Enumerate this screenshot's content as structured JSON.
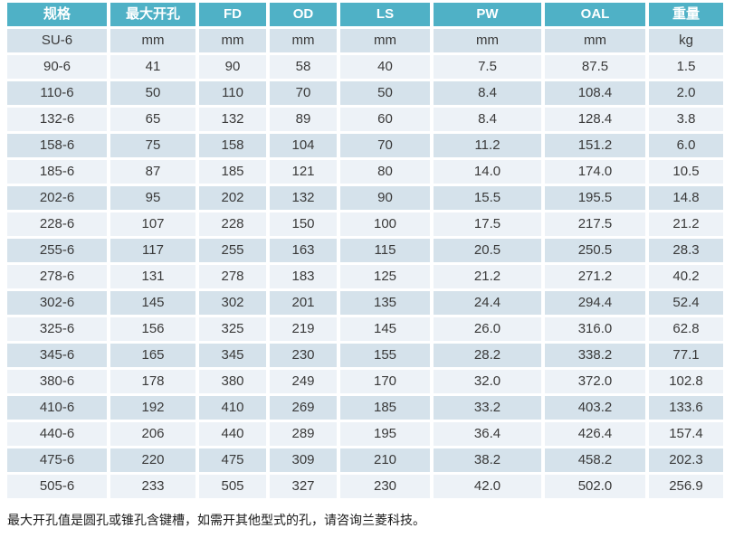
{
  "table": {
    "headers": [
      "规格",
      "最大开孔",
      "FD",
      "OD",
      "LS",
      "PW",
      "OAL",
      "重量"
    ],
    "units_row": [
      "SU-6",
      "mm",
      "mm",
      "mm",
      "mm",
      "mm",
      "mm",
      "kg"
    ],
    "rows": [
      [
        "90-6",
        "41",
        "90",
        "58",
        "40",
        "7.5",
        "87.5",
        "1.5"
      ],
      [
        "110-6",
        "50",
        "110",
        "70",
        "50",
        "8.4",
        "108.4",
        "2.0"
      ],
      [
        "132-6",
        "65",
        "132",
        "89",
        "60",
        "8.4",
        "128.4",
        "3.8"
      ],
      [
        "158-6",
        "75",
        "158",
        "104",
        "70",
        "11.2",
        "151.2",
        "6.0"
      ],
      [
        "185-6",
        "87",
        "185",
        "121",
        "80",
        "14.0",
        "174.0",
        "10.5"
      ],
      [
        "202-6",
        "95",
        "202",
        "132",
        "90",
        "15.5",
        "195.5",
        "14.8"
      ],
      [
        "228-6",
        "107",
        "228",
        "150",
        "100",
        "17.5",
        "217.5",
        "21.2"
      ],
      [
        "255-6",
        "117",
        "255",
        "163",
        "115",
        "20.5",
        "250.5",
        "28.3"
      ],
      [
        "278-6",
        "131",
        "278",
        "183",
        "125",
        "21.2",
        "271.2",
        "40.2"
      ],
      [
        "302-6",
        "145",
        "302",
        "201",
        "135",
        "24.4",
        "294.4",
        "52.4"
      ],
      [
        "325-6",
        "156",
        "325",
        "219",
        "145",
        "26.0",
        "316.0",
        "62.8"
      ],
      [
        "345-6",
        "165",
        "345",
        "230",
        "155",
        "28.2",
        "338.2",
        "77.1"
      ],
      [
        "380-6",
        "178",
        "380",
        "249",
        "170",
        "32.0",
        "372.0",
        "102.8"
      ],
      [
        "410-6",
        "192",
        "410",
        "269",
        "185",
        "33.2",
        "403.2",
        "133.6"
      ],
      [
        "440-6",
        "206",
        "440",
        "289",
        "195",
        "36.4",
        "426.4",
        "157.4"
      ],
      [
        "475-6",
        "220",
        "475",
        "309",
        "210",
        "38.2",
        "458.2",
        "202.3"
      ],
      [
        "505-6",
        "233",
        "505",
        "327",
        "230",
        "42.0",
        "502.0",
        "256.9"
      ]
    ]
  },
  "footnote": "最大开孔值是圆孔或锥孔含键槽，如需开其他型式的孔，请咨询兰菱科技。",
  "colors": {
    "header_bg": "#4fb1c6",
    "header_text": "#ffffff",
    "row_dark": "#d5e2eb",
    "row_light": "#edf2f7",
    "cell_text": "#3a3a3a",
    "footnote_text": "#1a1a1a"
  }
}
